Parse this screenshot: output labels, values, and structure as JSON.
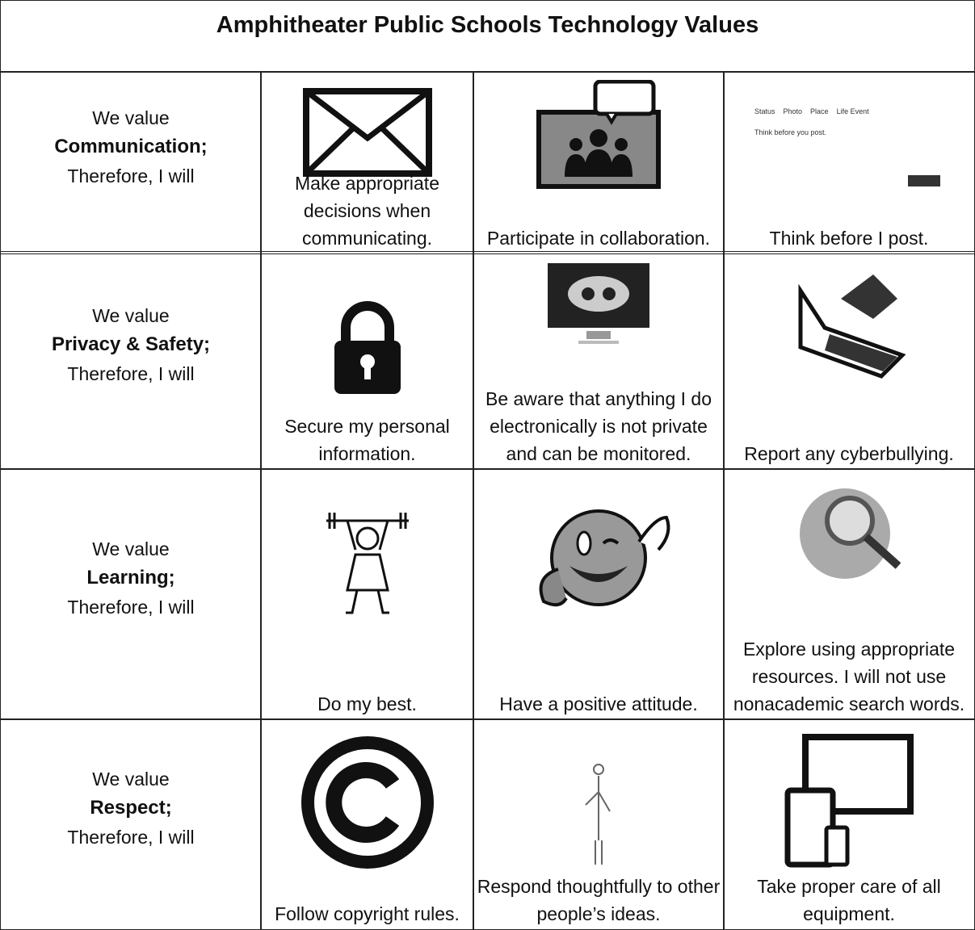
{
  "title": "Amphitheater Public Schools Technology Values",
  "rows": [
    {
      "intro": "We value",
      "value": "Communication;",
      "therefore": "Therefore, I will",
      "actions": [
        "Make appropriate decisions when communicating.",
        "Participate in collaboration.",
        "Think before I post."
      ]
    },
    {
      "intro": "We value",
      "value": "Privacy & Safety;",
      "therefore": "Therefore, I will",
      "actions": [
        "Secure my personal information.",
        "Be aware that anything I do electronically is not private and can be monitored.",
        "Report any cyberbullying."
      ]
    },
    {
      "intro": "We value",
      "value": "Learning;",
      "therefore": "Therefore, I will",
      "actions": [
        "Do my best.",
        "Have a positive attitude.",
        "Explore using appropriate resources. I will not use nonacademic search words."
      ]
    },
    {
      "intro": "We value",
      "value": "Respect;",
      "therefore": "Therefore, I will",
      "actions": [
        "Follow copyright rules.",
        "Respond thoughtfully to other people’s ideas.",
        "Take proper care of all equipment."
      ]
    }
  ],
  "post_widget": {
    "tabs": [
      "Status",
      "Photo",
      "Place",
      "Life Event"
    ],
    "prompt": "Think before you post."
  }
}
